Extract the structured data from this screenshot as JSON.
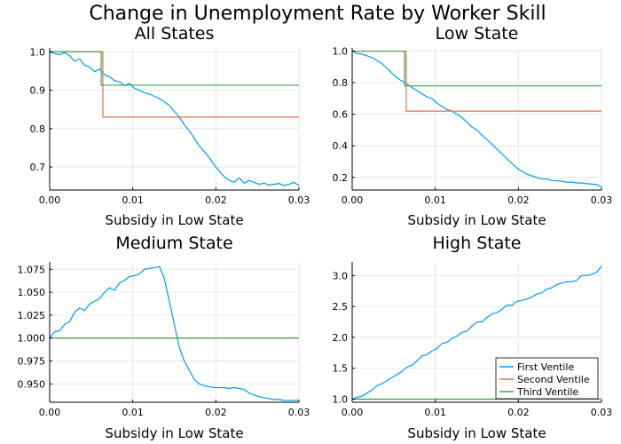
{
  "figure": {
    "title": "Change in Unemployment Rate by Worker Skill",
    "series_colors": [
      "#009AFA",
      "#E36F47",
      "#3EA44E"
    ]
  },
  "chart_data": [
    {
      "type": "line",
      "title": "All States",
      "xlabel": "Subsidy in Low State",
      "ylabel": "",
      "xlim": [
        0,
        0.03
      ],
      "ylim": [
        0.64,
        1.01
      ],
      "xticks": [
        0,
        0.01,
        0.02,
        0.03
      ],
      "xtick_labels": [
        "0.00",
        "0.01",
        "0.02",
        "0.03"
      ],
      "yticks": [
        0.7,
        0.8,
        0.9,
        1.0
      ],
      "ytick_labels": [
        "0.7",
        "0.8",
        "0.9",
        "1.0"
      ],
      "grid": true,
      "legend": false,
      "series": [
        {
          "x": [
            0,
            0.0006,
            0.0012,
            0.0018,
            0.0024,
            0.003,
            0.0036,
            0.0042,
            0.0048,
            0.0054,
            0.006,
            0.0066,
            0.0072,
            0.0078,
            0.0084,
            0.009,
            0.0096,
            0.0102,
            0.0108,
            0.0114,
            0.012,
            0.0126,
            0.0132,
            0.0138,
            0.0144,
            0.015,
            0.0156,
            0.0162,
            0.0168,
            0.0174,
            0.018,
            0.0186,
            0.0192,
            0.0198,
            0.0204,
            0.021,
            0.0216,
            0.0222,
            0.0228,
            0.0234,
            0.024,
            0.0246,
            0.0252,
            0.0258,
            0.0264,
            0.027,
            0.0276,
            0.0282,
            0.0288,
            0.0294,
            0.03
          ],
          "y": [
            1.0,
            0.995,
            0.993,
            0.998,
            0.99,
            0.975,
            0.982,
            0.965,
            0.96,
            0.948,
            0.955,
            0.94,
            0.935,
            0.925,
            0.922,
            0.912,
            0.918,
            0.905,
            0.9,
            0.893,
            0.89,
            0.884,
            0.878,
            0.87,
            0.86,
            0.845,
            0.83,
            0.81,
            0.795,
            0.775,
            0.755,
            0.74,
            0.725,
            0.705,
            0.69,
            0.675,
            0.665,
            0.66,
            0.672,
            0.658,
            0.665,
            0.66,
            0.655,
            0.658,
            0.653,
            0.655,
            0.657,
            0.652,
            0.655,
            0.66,
            0.652
          ]
        },
        {
          "x": [
            0,
            0.0064,
            0.0064,
            0.03
          ],
          "y": [
            1.0,
            1.0,
            0.83,
            0.83
          ]
        },
        {
          "x": [
            0,
            0.0062,
            0.0062,
            0.03
          ],
          "y": [
            1.0,
            1.0,
            0.913,
            0.913
          ]
        }
      ]
    },
    {
      "type": "line",
      "title": "Low State",
      "xlabel": "Subsidy in Low State",
      "ylabel": "",
      "xlim": [
        0,
        0.03
      ],
      "ylim": [
        0.12,
        1.02
      ],
      "xticks": [
        0,
        0.01,
        0.02,
        0.03
      ],
      "xtick_labels": [
        "0.00",
        "0.01",
        "0.02",
        "0.03"
      ],
      "yticks": [
        0.2,
        0.4,
        0.6,
        0.8,
        1.0
      ],
      "ytick_labels": [
        "0.2",
        "0.4",
        "0.6",
        "0.8",
        "1.0"
      ],
      "grid": true,
      "legend": false,
      "series": [
        {
          "x": [
            0,
            0.0006,
            0.0012,
            0.0018,
            0.0024,
            0.003,
            0.0036,
            0.0042,
            0.0048,
            0.0054,
            0.006,
            0.0066,
            0.0072,
            0.0078,
            0.0084,
            0.009,
            0.0096,
            0.0102,
            0.0108,
            0.0114,
            0.012,
            0.0126,
            0.0132,
            0.0138,
            0.0144,
            0.015,
            0.0156,
            0.0162,
            0.0168,
            0.0174,
            0.018,
            0.0186,
            0.0192,
            0.0198,
            0.0204,
            0.021,
            0.0216,
            0.0222,
            0.0228,
            0.0234,
            0.024,
            0.0246,
            0.0252,
            0.0258,
            0.0264,
            0.027,
            0.0276,
            0.0282,
            0.0288,
            0.0294,
            0.03
          ],
          "y": [
            1.0,
            0.985,
            0.982,
            0.97,
            0.96,
            0.94,
            0.92,
            0.89,
            0.86,
            0.83,
            0.81,
            0.79,
            0.77,
            0.75,
            0.73,
            0.71,
            0.7,
            0.67,
            0.65,
            0.63,
            0.62,
            0.6,
            0.58,
            0.55,
            0.52,
            0.5,
            0.47,
            0.44,
            0.41,
            0.38,
            0.35,
            0.32,
            0.29,
            0.26,
            0.24,
            0.22,
            0.21,
            0.2,
            0.19,
            0.19,
            0.18,
            0.18,
            0.175,
            0.17,
            0.17,
            0.165,
            0.165,
            0.16,
            0.158,
            0.155,
            0.14
          ]
        },
        {
          "x": [
            0,
            0.0065,
            0.0065,
            0.03
          ],
          "y": [
            1.0,
            1.0,
            0.62,
            0.62
          ]
        },
        {
          "x": [
            0,
            0.0063,
            0.0063,
            0.03
          ],
          "y": [
            1.0,
            1.0,
            0.78,
            0.78
          ]
        }
      ]
    },
    {
      "type": "line",
      "title": "Medium State",
      "xlabel": "Subsidy in Low State",
      "ylabel": "",
      "xlim": [
        0,
        0.03
      ],
      "ylim": [
        0.93,
        1.083
      ],
      "xticks": [
        0,
        0.01,
        0.02,
        0.03
      ],
      "xtick_labels": [
        "0.00",
        "0.01",
        "0.02",
        "0.03"
      ],
      "yticks": [
        0.95,
        0.975,
        1.0,
        1.025,
        1.05,
        1.075
      ],
      "ytick_labels": [
        "0.950",
        "0.975",
        "1.000",
        "1.025",
        "1.050",
        "1.075"
      ],
      "grid": true,
      "legend": false,
      "series": [
        {
          "x": [
            0,
            0.0006,
            0.0012,
            0.0018,
            0.0024,
            0.003,
            0.0036,
            0.0042,
            0.0048,
            0.0054,
            0.006,
            0.0066,
            0.0072,
            0.0078,
            0.0084,
            0.009,
            0.0096,
            0.0102,
            0.0108,
            0.0114,
            0.012,
            0.0126,
            0.0132,
            0.0138,
            0.0144,
            0.015,
            0.0156,
            0.0162,
            0.0168,
            0.0174,
            0.018,
            0.0186,
            0.0192,
            0.0198,
            0.0204,
            0.021,
            0.0216,
            0.0222,
            0.0228,
            0.0234,
            0.024,
            0.0246,
            0.0252,
            0.0258,
            0.0264,
            0.027,
            0.0276,
            0.0282,
            0.0288,
            0.0294,
            0.03
          ],
          "y": [
            1.0,
            1.007,
            1.008,
            1.015,
            1.018,
            1.028,
            1.033,
            1.03,
            1.037,
            1.04,
            1.043,
            1.05,
            1.055,
            1.052,
            1.06,
            1.063,
            1.067,
            1.068,
            1.07,
            1.075,
            1.076,
            1.077,
            1.078,
            1.065,
            1.04,
            1.015,
            0.99,
            0.975,
            0.965,
            0.955,
            0.95,
            0.948,
            0.947,
            0.946,
            0.946,
            0.946,
            0.945,
            0.946,
            0.945,
            0.944,
            0.94,
            0.938,
            0.936,
            0.935,
            0.934,
            0.933,
            0.933,
            0.932,
            0.932,
            0.932,
            0.932
          ]
        },
        {
          "x": [
            0,
            0.03
          ],
          "y": [
            1.0,
            1.0
          ]
        },
        {
          "x": [
            0,
            0.03
          ],
          "y": [
            1.0,
            1.0
          ]
        }
      ]
    },
    {
      "type": "line",
      "title": "High State",
      "xlabel": "Subsidy in Low State",
      "ylabel": "",
      "xlim": [
        0,
        0.03
      ],
      "ylim": [
        0.95,
        3.22
      ],
      "xticks": [
        0,
        0.01,
        0.02,
        0.03
      ],
      "xtick_labels": [
        "0.00",
        "0.01",
        "0.02",
        "0.03"
      ],
      "yticks": [
        1.0,
        1.5,
        2.0,
        2.5,
        3.0
      ],
      "ytick_labels": [
        "1.0",
        "1.5",
        "2.0",
        "2.5",
        "3.0"
      ],
      "grid": true,
      "legend": "bottom-right",
      "legend_entries": [
        "First Ventile",
        "Second Ventile",
        "Third Ventile"
      ],
      "series": [
        {
          "name": "First Ventile",
          "x": [
            0,
            0.0006,
            0.0012,
            0.0018,
            0.0024,
            0.003,
            0.0036,
            0.0042,
            0.0048,
            0.0054,
            0.006,
            0.0066,
            0.0072,
            0.0078,
            0.0084,
            0.009,
            0.0096,
            0.0102,
            0.0108,
            0.0114,
            0.012,
            0.0126,
            0.0132,
            0.0138,
            0.0144,
            0.015,
            0.0156,
            0.0162,
            0.0168,
            0.0174,
            0.018,
            0.0186,
            0.0192,
            0.0198,
            0.0204,
            0.021,
            0.0216,
            0.0222,
            0.0228,
            0.0234,
            0.024,
            0.0246,
            0.0252,
            0.0258,
            0.0264,
            0.027,
            0.0276,
            0.0282,
            0.0288,
            0.0294,
            0.03
          ],
          "y": [
            1.0,
            1.03,
            1.05,
            1.1,
            1.15,
            1.22,
            1.25,
            1.3,
            1.35,
            1.4,
            1.45,
            1.52,
            1.55,
            1.62,
            1.7,
            1.72,
            1.78,
            1.82,
            1.9,
            1.92,
            1.98,
            2.02,
            2.08,
            2.1,
            2.18,
            2.25,
            2.25,
            2.32,
            2.38,
            2.4,
            2.45,
            2.52,
            2.52,
            2.58,
            2.6,
            2.62,
            2.65,
            2.7,
            2.72,
            2.78,
            2.8,
            2.85,
            2.88,
            2.9,
            2.9,
            2.92,
            3.0,
            3.0,
            3.02,
            3.05,
            3.15
          ]
        },
        {
          "name": "Second Ventile",
          "x": [
            0,
            0.03
          ],
          "y": [
            1.0,
            1.0
          ]
        },
        {
          "name": "Third Ventile",
          "x": [
            0,
            0.03
          ],
          "y": [
            1.0,
            1.0
          ]
        }
      ]
    }
  ]
}
